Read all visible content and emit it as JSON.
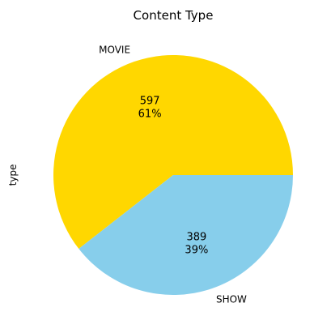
{
  "chart_data": {
    "type": "pie",
    "title": "Content Type",
    "ylabel": "type",
    "categories": [
      "MOVIE",
      "SHOW"
    ],
    "values": [
      597,
      389
    ],
    "percent_labels": [
      "61%",
      "39%"
    ],
    "colors": [
      "#FFD700",
      "#87CEEB"
    ],
    "legend": "none"
  }
}
